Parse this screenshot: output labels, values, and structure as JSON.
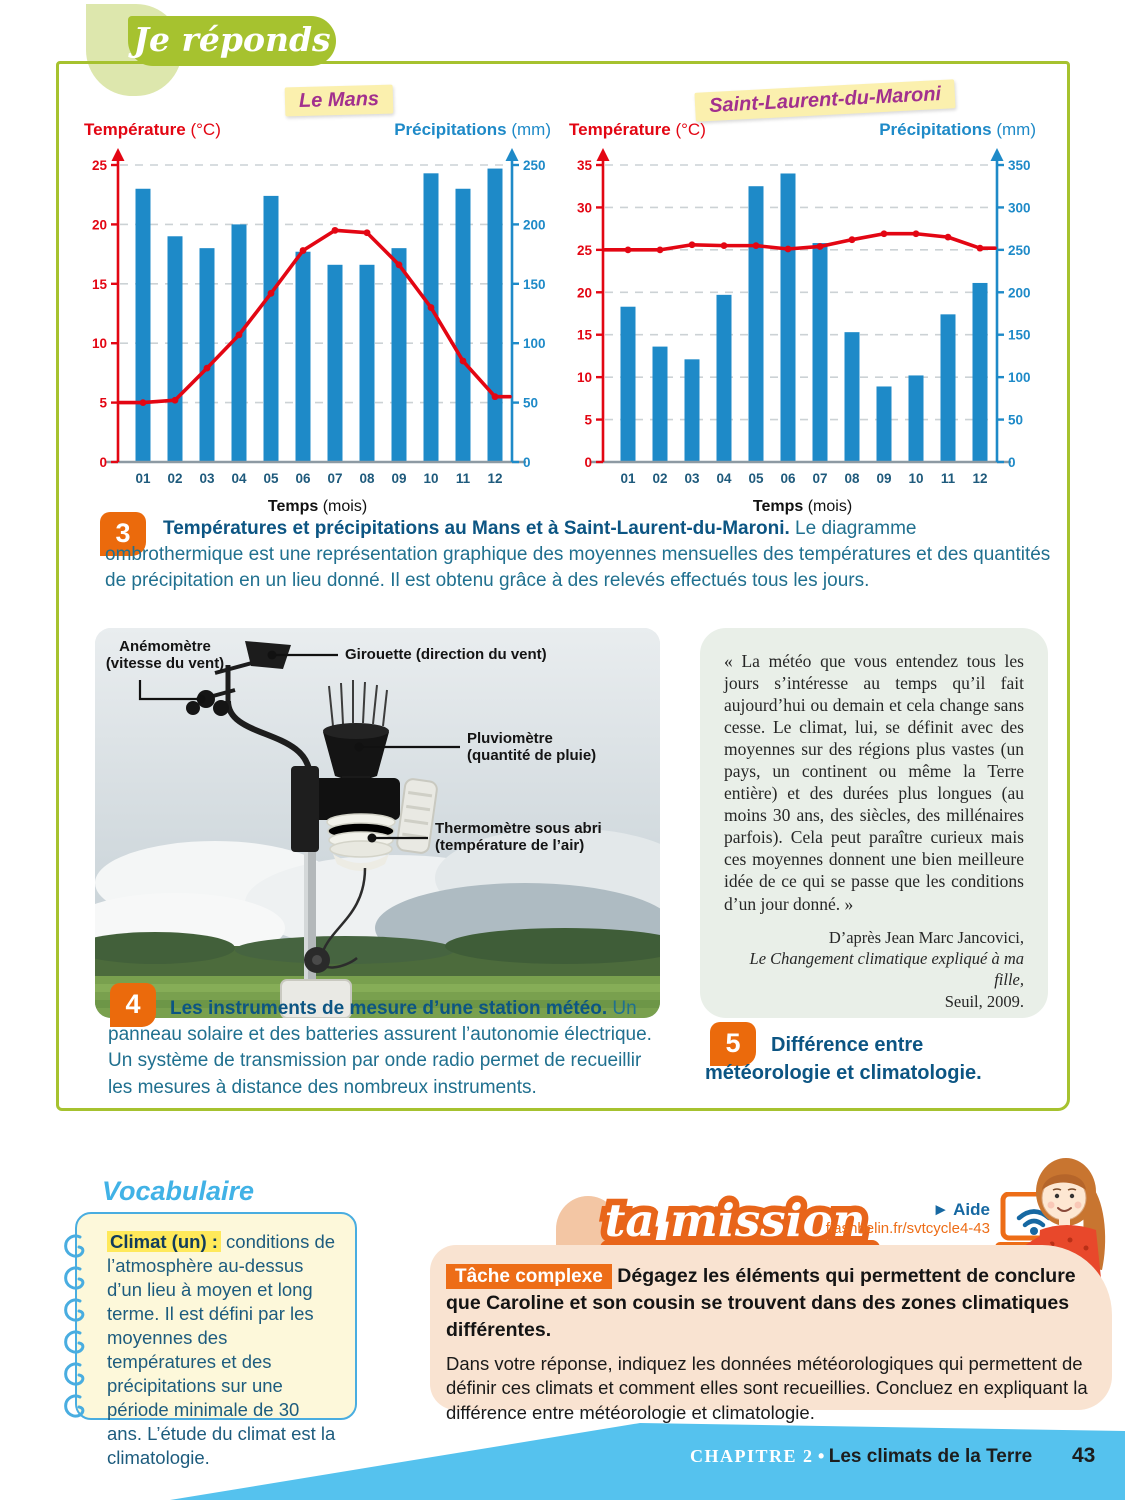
{
  "header": {
    "title": "Je réponds"
  },
  "chart_data": [
    {
      "type": "bar+line",
      "title": "Le Mans",
      "categories": [
        "01",
        "02",
        "03",
        "04",
        "05",
        "06",
        "07",
        "08",
        "09",
        "10",
        "11",
        "12"
      ],
      "x_axis_label": "Temps",
      "x_axis_unit": "(mois)",
      "left_axis": {
        "label": "Température",
        "unit": "(°C)",
        "color": "#e30613",
        "max": 25,
        "ticks": [
          0,
          5,
          10,
          15,
          20,
          25
        ]
      },
      "right_axis": {
        "label": "Précipitations",
        "unit": "(mm)",
        "color": "#1e8ac8",
        "max": 250,
        "ticks": [
          0,
          50,
          100,
          150,
          200,
          250
        ]
      },
      "series": [
        {
          "name": "Précipitations",
          "type": "bar",
          "axis": "right",
          "color": "#1e8ac8",
          "values": [
            230,
            190,
            180,
            200,
            224,
            177,
            166,
            166,
            180,
            243,
            230,
            247
          ]
        },
        {
          "name": "Température",
          "type": "line",
          "axis": "left",
          "color": "#e30613",
          "values": [
            5.0,
            5.2,
            7.9,
            10.7,
            14.2,
            17.8,
            19.5,
            19.3,
            16.6,
            13.0,
            8.5,
            5.5
          ]
        }
      ]
    },
    {
      "type": "bar+line",
      "title": "Saint-Laurent-du-Maroni",
      "categories": [
        "01",
        "02",
        "03",
        "04",
        "05",
        "06",
        "07",
        "08",
        "09",
        "10",
        "11",
        "12"
      ],
      "x_axis_label": "Temps",
      "x_axis_unit": "(mois)",
      "left_axis": {
        "label": "Température",
        "unit": "(°C)",
        "color": "#e30613",
        "max": 35,
        "ticks": [
          0,
          5,
          10,
          15,
          20,
          25,
          30,
          35
        ]
      },
      "right_axis": {
        "label": "Précipitations",
        "unit": "(mm)",
        "color": "#1e8ac8",
        "max": 350,
        "ticks": [
          0,
          50,
          100,
          150,
          200,
          250,
          300,
          350
        ]
      },
      "series": [
        {
          "name": "Précipitations",
          "type": "bar",
          "axis": "right",
          "color": "#1e8ac8",
          "values": [
            183,
            136,
            121,
            197,
            325,
            340,
            258,
            153,
            89,
            102,
            174,
            211
          ]
        },
        {
          "name": "Température",
          "type": "line",
          "axis": "left",
          "color": "#e30613",
          "values": [
            25.0,
            25.0,
            25.6,
            25.5,
            25.5,
            25.1,
            25.4,
            26.2,
            26.9,
            26.9,
            26.5,
            25.2
          ]
        }
      ]
    }
  ],
  "figure3": {
    "number": "3",
    "lead": "Températures et précipitations au Mans et à Saint-Laurent-du-Maroni.",
    "text": " Le diagramme ombrothermique est une représentation graphique des moyennes mensuelles des températures et des quantités de précipitation en un lieu donné. Il est obtenu grâce à des relevés effectués tous les jours."
  },
  "figure4": {
    "number": "4",
    "lead": "Les instruments de mesure d’une station météo.",
    "text": " Un panneau solaire et des batteries assurent l’autonomie électrique. Un système de transmission par onde radio permet de recueillir les mesures à distance des nombreux instruments.",
    "labels": {
      "anemometre": "Anémomètre\n(vitesse du vent)",
      "girouette": "Girouette (direction du vent)",
      "pluviometre": "Pluviomètre\n(quantité de pluie)",
      "thermometre": "Thermomètre sous abri\n(température de l’air)"
    }
  },
  "quote": {
    "text": "« La météo que vous entendez tous les jours s’intéresse au temps qu’il fait aujourd’hui ou demain et cela change sans cesse. Le climat, lui, se définit avec des moyennes sur des régions plus vastes (un pays, un continent ou même la Terre entière) et des durées plus longues (au moins 30 ans, des siècles, des millénaires parfois). Cela peut paraître curieux mais ces moyennes donnent une bien meilleure idée de ce qui se passe que les conditions d’un jour donné. »",
    "source_line1": "D’après Jean Marc Jancovici,",
    "source_line2": "Le Changement climatique expliqué à ma fille,",
    "source_line3": "Seuil, 2009."
  },
  "figure5": {
    "number": "5",
    "lead": "Différence entre météorologie et climatologie."
  },
  "vocabulaire": {
    "title": "Vocabulaire",
    "term": "Climat (un) :",
    "definition": " conditions de l’atmosphère au-dessus d’un lieu à moyen et long terme. Il est défini par les moyennes des températures et des précipitations sur une période minimale de 30 ans. L’étude du climat est la climatologie."
  },
  "mission": {
    "badge": "ta mission",
    "aide_label": "► Aide",
    "aide_url": "flashbelin.fr/svtcycle4-43",
    "tache_label": "Tâche complexe",
    "tache_text": " Dégagez les éléments qui permettent de conclure que Caroline et son cousin se trouvent dans des zones climatiques différentes.",
    "body": "Dans votre réponse, indiquez les données météorologiques qui permettent de définir ces climats et comment elles sont recueillies. Concluez en expliquant la différence entre météorologie et climatologie."
  },
  "footer": {
    "chapter": "CHAPITRE 2",
    "separator": "•",
    "title": "Les climats de la Terre",
    "page_number": "43"
  }
}
